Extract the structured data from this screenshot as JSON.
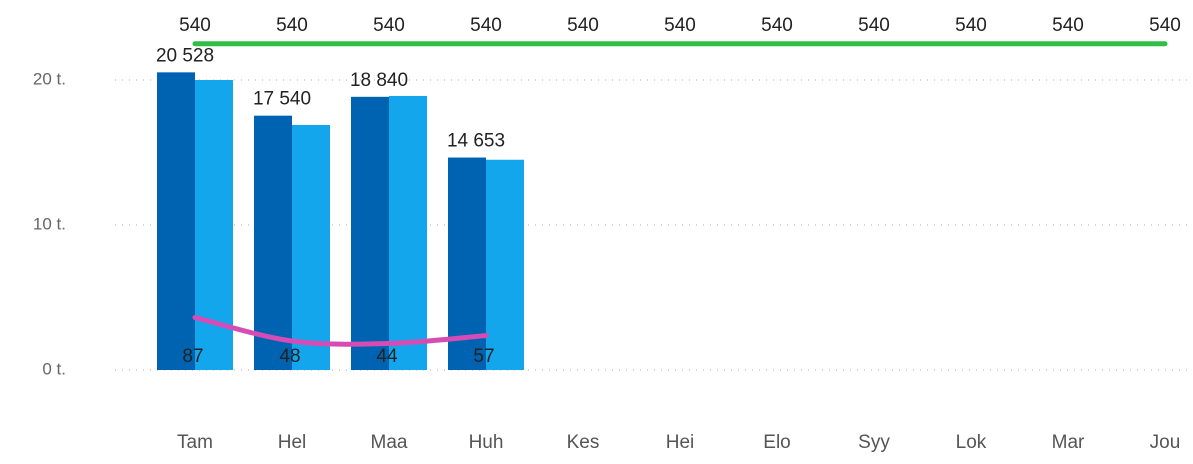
{
  "chart_data": {
    "type": "combo",
    "categories": [
      "Tam",
      "Hel",
      "Maa",
      "Huh",
      "Kes",
      "Hei",
      "Elo",
      "Syy",
      "Lok",
      "Mar",
      "Jou"
    ],
    "ylim": [
      0,
      22500
    ],
    "yticks": [
      {
        "value": 0,
        "label": "0 t."
      },
      {
        "value": 10000,
        "label": "10 t."
      },
      {
        "value": 20000,
        "label": "20 t."
      }
    ],
    "y2lim": [
      0,
      540
    ],
    "grid": true,
    "series": [
      {
        "type": "bar",
        "color": "#0063b1",
        "values": [
          20528,
          17540,
          18840,
          14653,
          null,
          null,
          null,
          null,
          null,
          null,
          null
        ],
        "value_labels": [
          "20 528",
          "17 540",
          "18 840",
          "14 653",
          null,
          null,
          null,
          null,
          null,
          null,
          null
        ]
      },
      {
        "type": "bar",
        "color": "#14a6ec",
        "values": [
          20000,
          16900,
          18900,
          14500,
          null,
          null,
          null,
          null,
          null,
          null,
          null
        ]
      },
      {
        "type": "line",
        "axis": "y2",
        "color": "#d44cb4",
        "values": [
          87,
          48,
          44,
          57,
          null,
          null,
          null,
          null,
          null,
          null,
          null
        ]
      },
      {
        "type": "line",
        "axis": "y2",
        "color": "#2fbf45",
        "values": [
          540,
          540,
          540,
          540,
          540,
          540,
          540,
          540,
          540,
          540,
          540
        ]
      }
    ]
  }
}
